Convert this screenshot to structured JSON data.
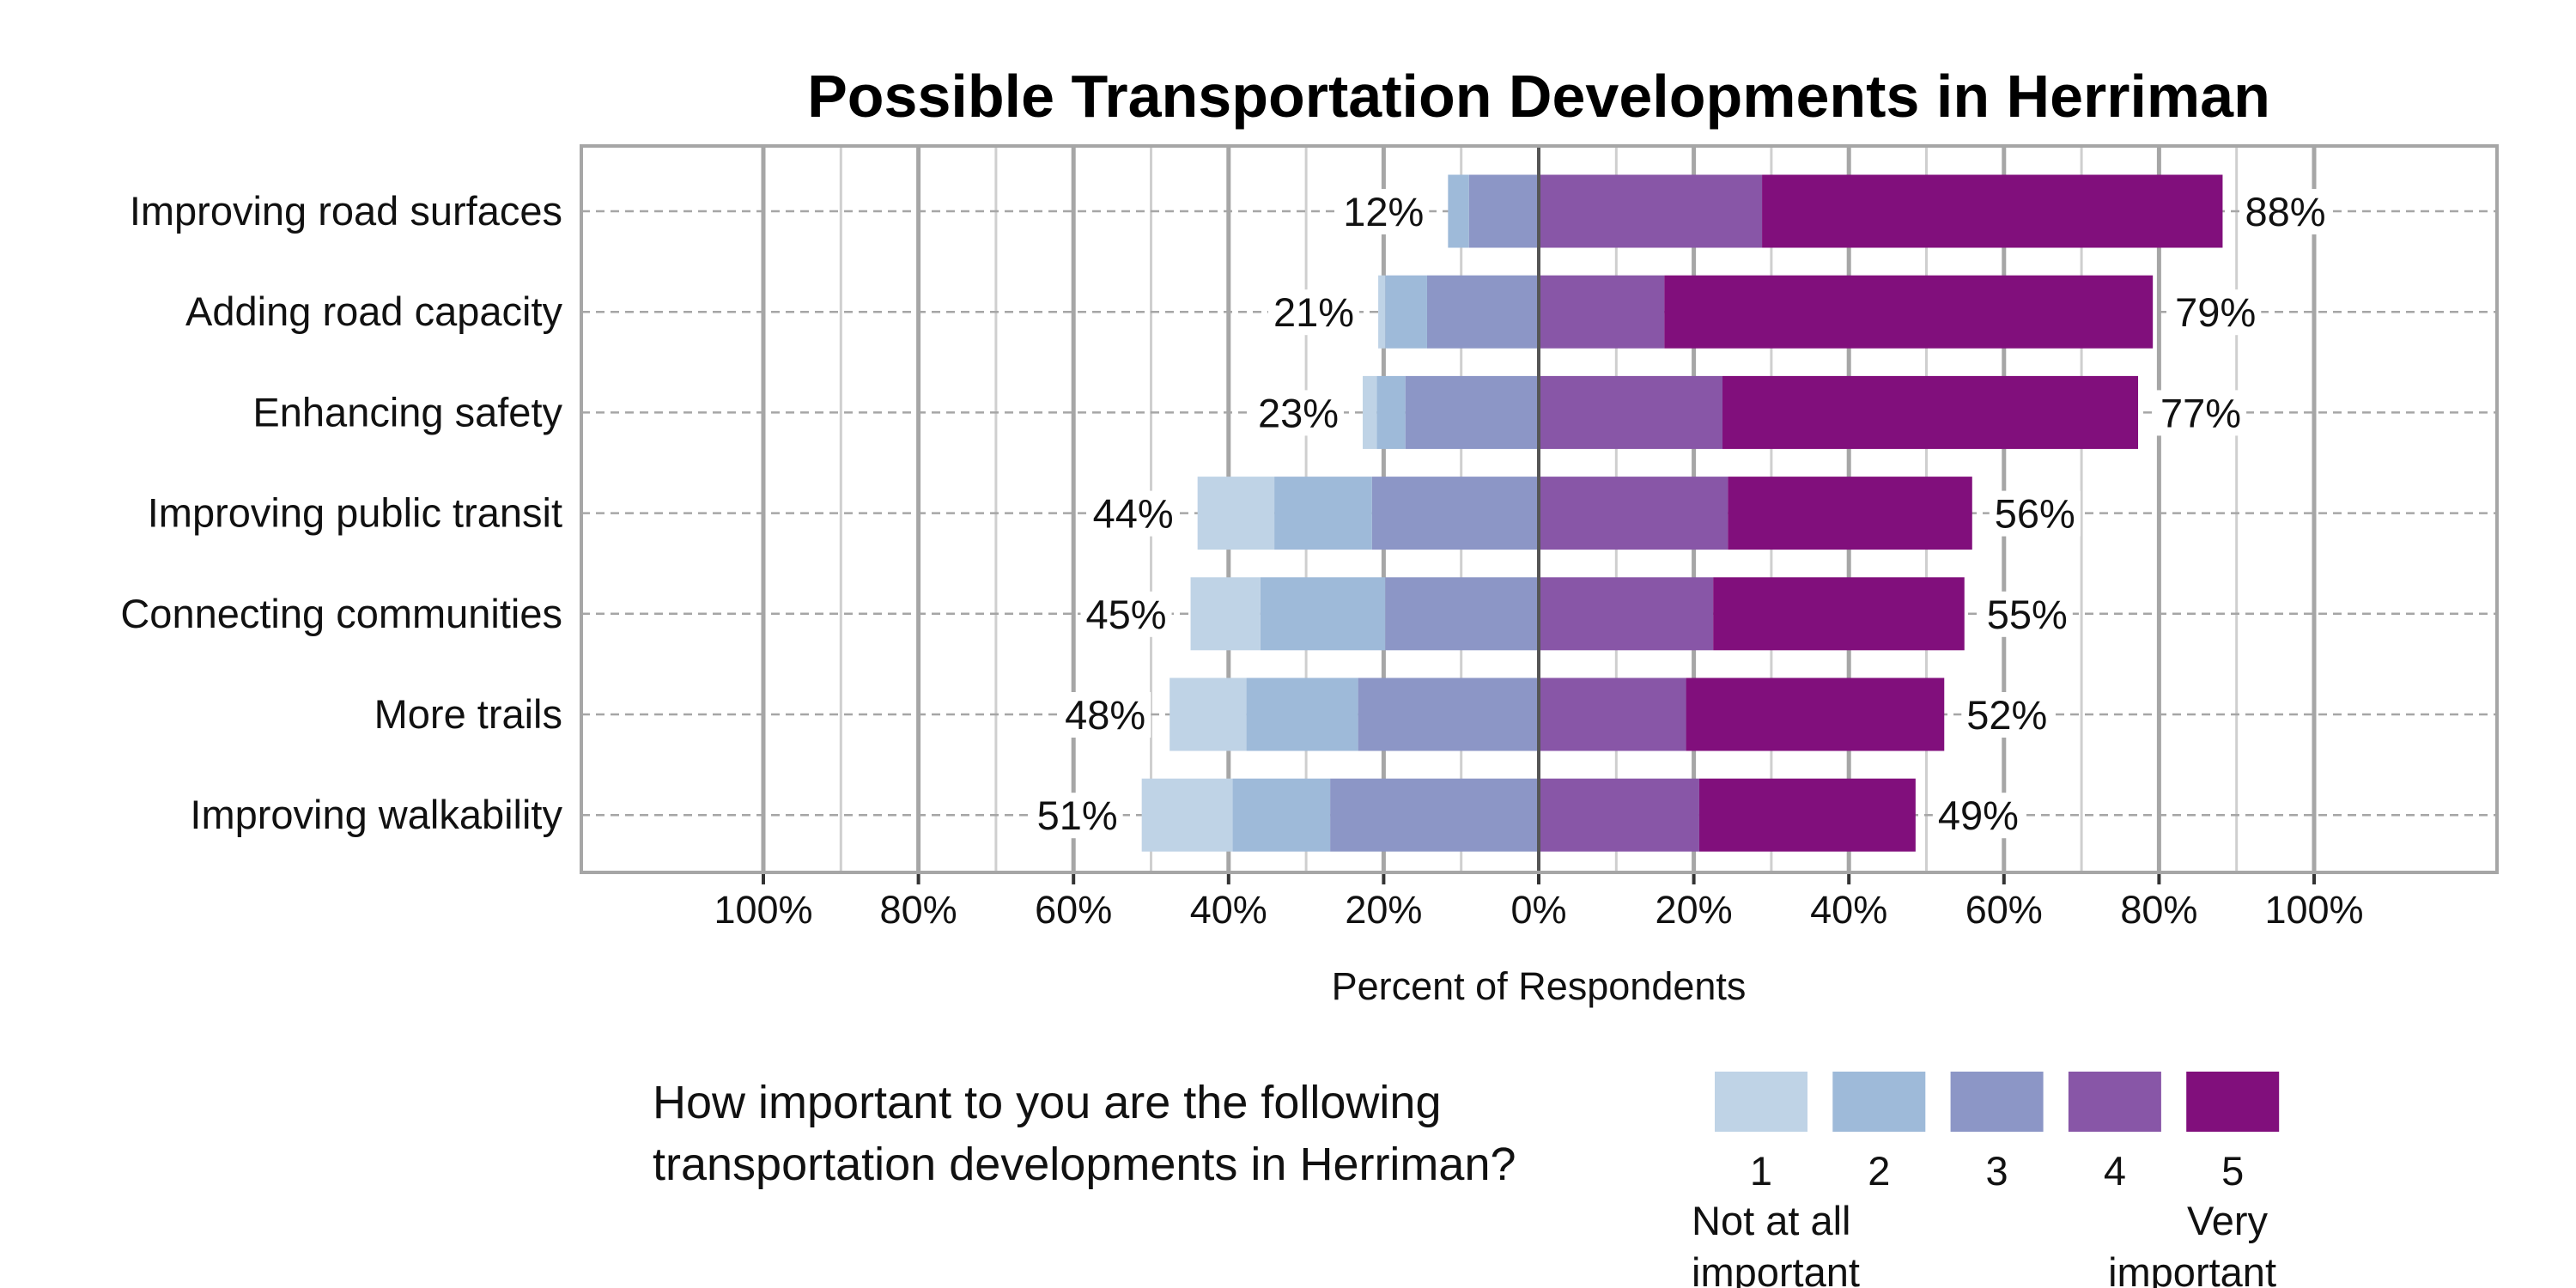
{
  "chart_data": {
    "type": "bar",
    "orientation": "horizontal",
    "stacked": "diverging",
    "title": "Possible Transportation Developments in Herriman",
    "xlabel": "Percent of Respondents",
    "ylabel": "",
    "xlim": [
      -124,
      124
    ],
    "x_ticks": [
      -100,
      -80,
      -60,
      -40,
      -20,
      0,
      20,
      40,
      60,
      80,
      100
    ],
    "x_tick_labels": [
      "100%",
      "80%",
      "60%",
      "40%",
      "20%",
      "0%",
      "20%",
      "40%",
      "60%",
      "80%",
      "100%"
    ],
    "grid": true,
    "categories": [
      "Improving road surfaces",
      "Adding road capacity",
      "Enhancing safety",
      "Improving public transit",
      "Connecting communities",
      "More trails",
      "Improving walkability"
    ],
    "series": [
      {
        "name": "1",
        "side": "negative",
        "color": "#BFD3E6",
        "values": [
          0.0,
          0.9,
          1.8,
          9.9,
          9.0,
          9.9,
          11.7
        ]
      },
      {
        "name": "2",
        "side": "negative",
        "color": "#9EBAD9",
        "values": [
          2.7,
          5.4,
          3.7,
          12.6,
          16.1,
          14.4,
          12.6
        ]
      },
      {
        "name": "3",
        "side": "negative",
        "color": "#8C96C6",
        "values": [
          9.0,
          14.4,
          17.2,
          21.5,
          19.8,
          23.3,
          26.9
        ]
      },
      {
        "name": "4",
        "side": "positive",
        "color": "#8856A7",
        "values": [
          28.8,
          16.2,
          23.7,
          24.4,
          22.5,
          19.0,
          20.7
        ]
      },
      {
        "name": "5",
        "side": "positive",
        "color": "#810F7C",
        "values": [
          59.4,
          63.0,
          53.6,
          31.5,
          32.4,
          33.3,
          27.9
        ]
      }
    ],
    "negative_totals": [
      "12%",
      "21%",
      "23%",
      "44%",
      "45%",
      "48%",
      "51%"
    ],
    "positive_totals": [
      "88%",
      "79%",
      "77%",
      "56%",
      "55%",
      "52%",
      "49%"
    ],
    "legend": {
      "title_lines": [
        "How important to you are the following",
        "transportation developments in Herriman?"
      ],
      "low_label_lines": [
        "Not at all",
        "important"
      ],
      "high_label_lines": [
        "Very",
        "important"
      ],
      "placement": "bottom"
    }
  }
}
